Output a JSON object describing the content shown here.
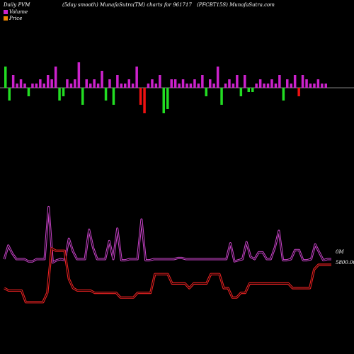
{
  "header": {
    "left": "Daily PVM",
    "mid1": "(5day smooth) MunafaSutra(TM) charts for 961717",
    "mid2": "(PFCBT15S) MunafaSutra.com"
  },
  "colors": {
    "background": "#000000",
    "positive_bar": "#cc22cc",
    "negative_bar_green": "#22dd22",
    "negative_bar_red": "#ee1111",
    "volume_line": "#cc44cc",
    "price_line": "#ee2222"
  },
  "chart_data": [
    {
      "type": "bar",
      "title": "",
      "series": [
        {
          "name": "",
          "values": [
            5,
            -3,
            3,
            1,
            2,
            1,
            -2,
            1,
            1,
            2,
            1,
            3,
            2,
            5,
            -3,
            -2,
            2,
            1,
            2,
            6,
            -4,
            2,
            1,
            2,
            1,
            4,
            -3,
            2,
            -4,
            3,
            1,
            1,
            2,
            1,
            5,
            -4,
            -6,
            1,
            2,
            1,
            3,
            -6,
            -5,
            2,
            2,
            1,
            2,
            1,
            1,
            2,
            1,
            3,
            -2,
            2,
            1,
            5,
            -4,
            1,
            2,
            1,
            3,
            -2,
            3,
            -1,
            -1,
            1,
            2,
            1,
            1,
            2,
            1,
            3,
            -3,
            2,
            1,
            3,
            -2,
            3,
            2,
            1,
            1,
            2,
            1,
            1
          ],
          "colors": [
            "g",
            "g",
            "m",
            "m",
            "m",
            "m",
            "g",
            "m",
            "m",
            "m",
            "m",
            "m",
            "m",
            "m",
            "g",
            "g",
            "m",
            "m",
            "m",
            "m",
            "g",
            "m",
            "m",
            "m",
            "m",
            "m",
            "g",
            "m",
            "g",
            "m",
            "m",
            "m",
            "m",
            "m",
            "m",
            "r",
            "r",
            "m",
            "m",
            "m",
            "m",
            "g",
            "g",
            "m",
            "m",
            "m",
            "m",
            "m",
            "m",
            "m",
            "m",
            "m",
            "g",
            "m",
            "m",
            "m",
            "g",
            "m",
            "m",
            "m",
            "m",
            "g",
            "m",
            "g",
            "g",
            "m",
            "m",
            "m",
            "m",
            "m",
            "m",
            "m",
            "g",
            "m",
            "m",
            "m",
            "r",
            "m",
            "m",
            "m",
            "m",
            "m",
            "m",
            "m"
          ]
        }
      ]
    },
    {
      "type": "line",
      "title": "",
      "series": [
        {
          "name": "Volume",
          "values": [
            0,
            1.2,
            0.5,
            0,
            0,
            0,
            -0.2,
            -0.2,
            0,
            0,
            0,
            4.6,
            -0.3,
            -0.1,
            0,
            -0.1,
            1.8,
            0.7,
            0,
            0,
            0,
            2.6,
            1,
            0,
            0,
            0,
            1.6,
            0,
            2.7,
            -0.1,
            -0.1,
            0,
            0,
            0,
            3.5,
            -0.1,
            -0.1,
            0,
            0,
            0,
            0,
            0,
            0,
            0.1,
            0.1,
            0,
            0,
            0,
            0,
            0,
            0,
            0,
            0,
            0,
            0,
            0,
            1.4,
            -0.2,
            -0.1,
            0,
            1.5,
            0.2,
            0,
            0.6,
            0.6,
            0,
            0,
            1,
            2.5,
            -0.1,
            -0.1,
            0,
            0.8,
            0.8,
            -0.1,
            -0.1,
            0,
            1.3,
            0.6,
            -0.1,
            0,
            0
          ]
        },
        {
          "name": "Price",
          "values": [
            5700,
            5690,
            5690,
            5690,
            5690,
            5640,
            5640,
            5640,
            5640,
            5640,
            5680,
            5870,
            5860,
            5860,
            5860,
            5740,
            5700,
            5690,
            5690,
            5690,
            5690,
            5680,
            5680,
            5680,
            5680,
            5680,
            5680,
            5660,
            5660,
            5660,
            5660,
            5680,
            5680,
            5680,
            5680,
            5760,
            5760,
            5760,
            5760,
            5720,
            5720,
            5720,
            5720,
            5700,
            5720,
            5720,
            5720,
            5720,
            5760,
            5760,
            5760,
            5700,
            5700,
            5660,
            5660,
            5680,
            5680,
            5720,
            5720,
            5720,
            5720,
            5720,
            5720,
            5720,
            5720,
            5720,
            5720,
            5700,
            5700,
            5700,
            5700,
            5700,
            5780,
            5800,
            5800,
            5800,
            5800
          ]
        }
      ]
    }
  ],
  "legend": {
    "volume_label": "Volume",
    "price_label": "Price"
  },
  "right_labels": {
    "volume_value": "0M",
    "price_value": "5800.00"
  }
}
